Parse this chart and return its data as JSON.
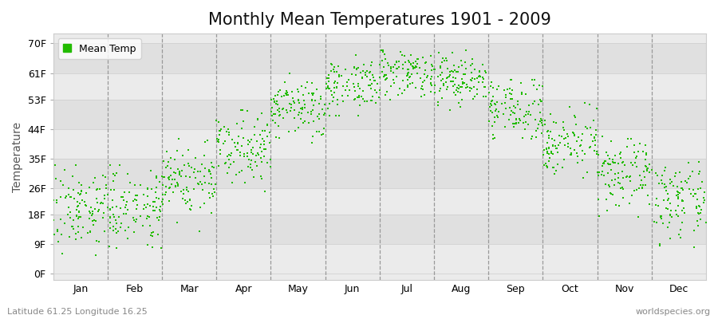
{
  "title": "Monthly Mean Temperatures 1901 - 2009",
  "ylabel": "Temperature",
  "xlabel_bottom_left": "Latitude 61.25 Longitude 16.25",
  "xlabel_bottom_right": "worldspecies.org",
  "legend_label": "Mean Temp",
  "yticks": [
    0,
    9,
    18,
    26,
    35,
    44,
    53,
    61,
    70
  ],
  "ytick_labels": [
    "0F",
    "9F",
    "18F",
    "26F",
    "35F",
    "44F",
    "53F",
    "61F",
    "70F"
  ],
  "ylim": [
    -2,
    73
  ],
  "xlim": [
    0,
    12
  ],
  "months": [
    "Jan",
    "Feb",
    "Mar",
    "Apr",
    "May",
    "Jun",
    "Jul",
    "Aug",
    "Sep",
    "Oct",
    "Nov",
    "Dec"
  ],
  "month_means_F": [
    20.0,
    20.5,
    28.5,
    39.0,
    50.0,
    57.5,
    61.5,
    59.0,
    50.0,
    40.0,
    30.0,
    22.0
  ],
  "month_stds_F": [
    6.0,
    5.5,
    5.5,
    5.0,
    4.5,
    4.0,
    3.5,
    4.0,
    4.5,
    4.5,
    5.0,
    5.5
  ],
  "month_min_F": [
    -2.0,
    0.0,
    12.0,
    25.0,
    39.0,
    48.0,
    52.0,
    48.0,
    41.0,
    29.0,
    14.0,
    3.0
  ],
  "month_max_F": [
    33.0,
    33.0,
    41.0,
    52.0,
    61.0,
    67.0,
    68.0,
    68.0,
    59.0,
    52.0,
    43.0,
    35.0
  ],
  "n_years": 109,
  "dot_color": "#22BB00",
  "dot_size": 4,
  "background_color": "#FFFFFF",
  "plot_bg_color": "#EBEBEB",
  "plot_bg_alt_color": "#E0E0E0",
  "title_fontsize": 15,
  "axis_fontsize": 10,
  "tick_fontsize": 9,
  "legend_fontsize": 9
}
